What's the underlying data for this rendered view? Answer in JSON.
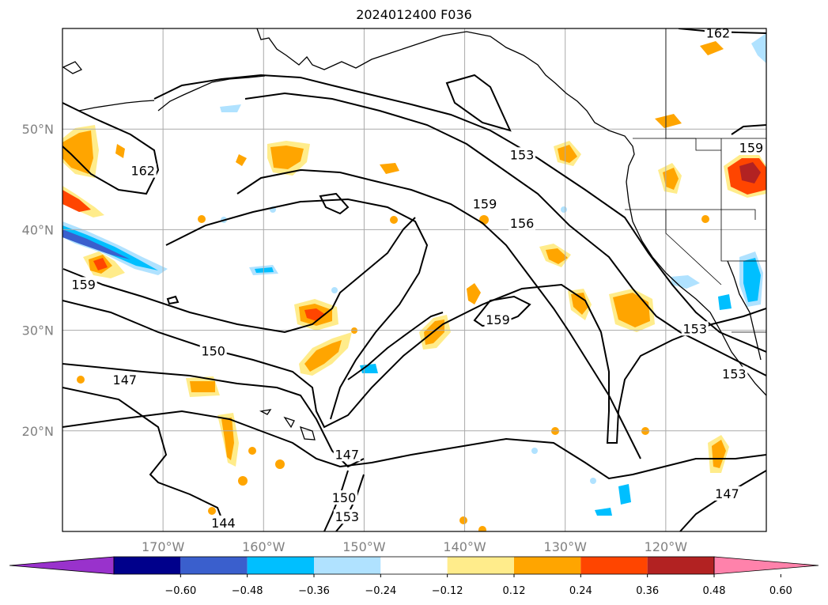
{
  "title": "2024012400 F036",
  "map": {
    "extent": {
      "lon_min": -180,
      "lon_max": -110,
      "lat_min": 10,
      "lat_max": 60
    },
    "lat_labels": [
      {
        "lat": 50,
        "text": "50°N"
      },
      {
        "lat": 40,
        "text": "40°N"
      },
      {
        "lat": 30,
        "text": "30°N"
      },
      {
        "lat": 20,
        "text": "20°N"
      }
    ],
    "lon_labels": [
      {
        "lon": -170,
        "text": "170°W"
      },
      {
        "lon": -160,
        "text": "160°W"
      },
      {
        "lon": -150,
        "text": "150°W"
      },
      {
        "lon": -140,
        "text": "140°W"
      },
      {
        "lon": -130,
        "text": "130°W"
      },
      {
        "lon": -120,
        "text": "120°W"
      }
    ],
    "gridline_color": "#aaaaaa",
    "coastline_color": "#000000"
  },
  "contour_labels": [
    {
      "text": "162",
      "lon": -114.8,
      "lat": 59.5
    },
    {
      "text": "162",
      "lon": -172.0,
      "lat": 45.8
    },
    {
      "text": "153",
      "lon": -134.3,
      "lat": 47.4
    },
    {
      "text": "159",
      "lon": -111.5,
      "lat": 48.1
    },
    {
      "text": "159",
      "lon": -138.0,
      "lat": 42.5
    },
    {
      "text": "156",
      "lon": -134.3,
      "lat": 40.6
    },
    {
      "text": "159",
      "lon": -177.9,
      "lat": 34.5
    },
    {
      "text": "159",
      "lon": -136.7,
      "lat": 31.0
    },
    {
      "text": "150",
      "lon": -165.0,
      "lat": 27.9
    },
    {
      "text": "147",
      "lon": -173.8,
      "lat": 25.0
    },
    {
      "text": "153",
      "lon": -117.1,
      "lat": 30.1
    },
    {
      "text": "153",
      "lon": -113.2,
      "lat": 25.6
    },
    {
      "text": "147",
      "lon": -151.7,
      "lat": 17.6
    },
    {
      "text": "150",
      "lon": -152.0,
      "lat": 13.3
    },
    {
      "text": "153",
      "lon": -151.7,
      "lat": 11.4
    },
    {
      "text": "147",
      "lon": -113.9,
      "lat": 13.7
    },
    {
      "text": "144",
      "lon": -164.0,
      "lat": 10.8
    }
  ],
  "colorbar": {
    "colors": [
      "#9932cc",
      "#00008b",
      "#3a5fcd",
      "#00bfff",
      "#b0e2ff",
      "#ffffff",
      "#ffec8b",
      "#ffa500",
      "#ff4500",
      "#b22222",
      "#ff82ab"
    ],
    "ticks": [
      "−0.60",
      "−0.48",
      "−0.36",
      "−0.24",
      "−0.12",
      "0.12",
      "0.24",
      "0.36",
      "0.48",
      "0.60"
    ]
  }
}
